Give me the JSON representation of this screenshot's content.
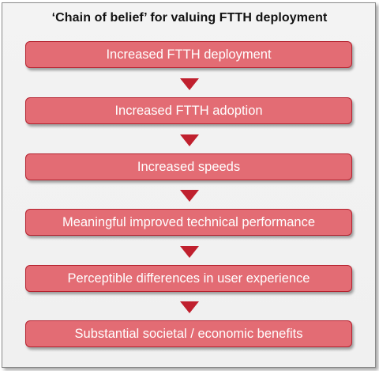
{
  "title": "‘Chain of belief’ for valuing FTTH deployment",
  "steps": [
    {
      "label": "Increased FTTH deployment"
    },
    {
      "label": "Increased FTTH adoption"
    },
    {
      "label": "Increased speeds"
    },
    {
      "label": "Meaningful improved technical performance"
    },
    {
      "label": "Perceptible differences in user experience"
    },
    {
      "label": "Substantial societal / economic benefits"
    }
  ],
  "colors": {
    "box_fill": "#e36c74",
    "box_border": "#b5222f",
    "arrow": "#c0202e",
    "background": "#f2f2f2"
  },
  "icons": [
    "down-arrow-icon"
  ]
}
